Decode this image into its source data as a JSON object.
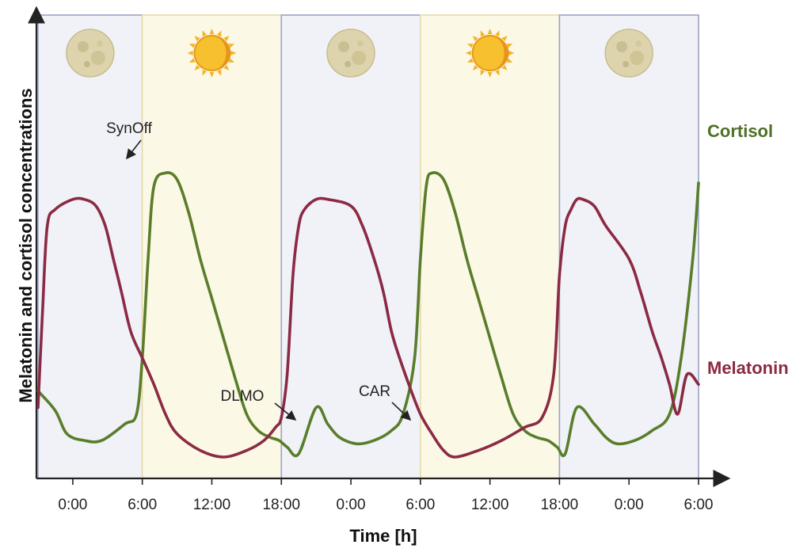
{
  "chart_data": {
    "type": "line",
    "xlabel": "Time [h]",
    "ylabel": "Melatonin and cortisol concentrations",
    "x_ticks": [
      "0:00",
      "6:00",
      "12:00",
      "18:00",
      "0:00",
      "6:00",
      "12:00",
      "18:00",
      "0:00",
      "6:00"
    ],
    "xlim_hours": [
      -3,
      54
    ],
    "ylim": [
      0,
      1
    ],
    "periods": [
      {
        "type": "night",
        "start": -3,
        "end": 6,
        "icon": "moon-icon"
      },
      {
        "type": "day",
        "start": 6,
        "end": 18,
        "icon": "sun-icon"
      },
      {
        "type": "night",
        "start": 18,
        "end": 30,
        "icon": "moon-icon"
      },
      {
        "type": "day",
        "start": 30,
        "end": 42,
        "icon": "sun-icon"
      },
      {
        "type": "night",
        "start": 42,
        "end": 54,
        "icon": "moon-icon"
      }
    ],
    "series": [
      {
        "name": "Cortisol",
        "color": "#5a7d2b",
        "x": [
          -3,
          -1.5,
          -0.5,
          1,
          2.5,
          4.5,
          5.5,
          6,
          6.5,
          7,
          8,
          9,
          10,
          11,
          12,
          13,
          14,
          15,
          16,
          17,
          17.8,
          18.5,
          19.5,
          21,
          22,
          23,
          24.5,
          26,
          27.5,
          28.5,
          29.5,
          30,
          30.5,
          31,
          32,
          33,
          34,
          35,
          36,
          37,
          38,
          39,
          40,
          41,
          41.8,
          42.5,
          43.5,
          45,
          46,
          47,
          48.5,
          50,
          51.5,
          52.5,
          53.5,
          54
        ],
        "y": [
          0.2,
          0.14,
          0.07,
          0.05,
          0.05,
          0.1,
          0.13,
          0.3,
          0.6,
          0.82,
          0.86,
          0.84,
          0.74,
          0.6,
          0.48,
          0.36,
          0.24,
          0.13,
          0.08,
          0.06,
          0.05,
          0.03,
          0.01,
          0.15,
          0.1,
          0.06,
          0.04,
          0.05,
          0.08,
          0.13,
          0.3,
          0.6,
          0.82,
          0.86,
          0.84,
          0.74,
          0.6,
          0.48,
          0.36,
          0.24,
          0.13,
          0.08,
          0.06,
          0.05,
          0.03,
          0.01,
          0.15,
          0.1,
          0.06,
          0.04,
          0.05,
          0.08,
          0.13,
          0.3,
          0.6,
          0.83
        ]
      },
      {
        "name": "Melatonin",
        "color": "#8b2a43",
        "x": [
          -3,
          -2.6,
          -2.2,
          -1.5,
          0,
          1,
          2,
          2.8,
          3.5,
          4.2,
          5,
          6,
          7,
          8,
          9,
          11,
          13,
          15,
          16.5,
          17.5,
          18,
          18.5,
          19,
          19.5,
          20,
          21,
          22,
          24,
          25,
          26,
          26.8,
          27.5,
          28.2,
          29,
          30,
          31,
          32,
          33,
          35,
          37,
          39,
          40.5,
          41.5,
          42,
          42.5,
          43,
          43.5,
          44,
          45,
          46,
          48,
          49,
          50,
          50.8,
          51.5,
          52.2,
          53,
          54
        ],
        "y": [
          0.15,
          0.45,
          0.7,
          0.75,
          0.78,
          0.78,
          0.76,
          0.7,
          0.6,
          0.5,
          0.38,
          0.3,
          0.22,
          0.13,
          0.07,
          0.02,
          0.0,
          0.02,
          0.05,
          0.09,
          0.12,
          0.25,
          0.55,
          0.7,
          0.75,
          0.78,
          0.78,
          0.76,
          0.7,
          0.6,
          0.5,
          0.38,
          0.3,
          0.22,
          0.13,
          0.07,
          0.02,
          0.0,
          0.02,
          0.05,
          0.09,
          0.12,
          0.25,
          0.55,
          0.7,
          0.75,
          0.78,
          0.78,
          0.76,
          0.7,
          0.6,
          0.5,
          0.38,
          0.3,
          0.22,
          0.13,
          0.25,
          0.22
        ]
      }
    ],
    "annotations": [
      {
        "text": "SynOff",
        "x": 2.8
      },
      {
        "text": "DLMO",
        "x": 17.8
      },
      {
        "text": "CAR",
        "x": 28.5
      }
    ]
  }
}
